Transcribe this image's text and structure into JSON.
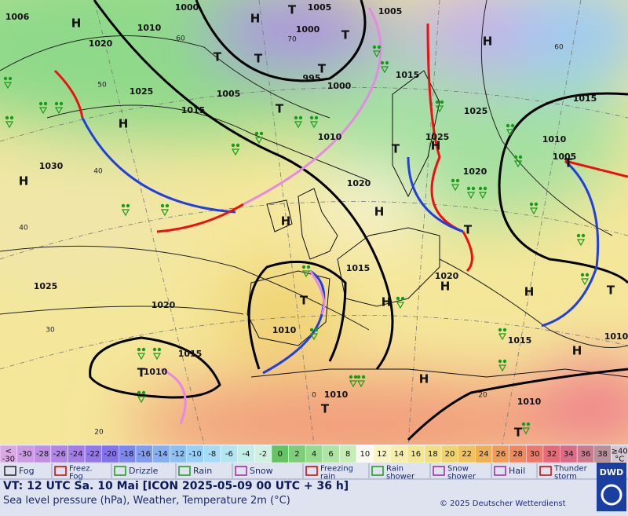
{
  "map": {
    "isobar_labels": [
      "1006",
      "1000",
      "1005",
      "1005",
      "1010",
      "1020",
      "1000",
      "995",
      "1000",
      "1015",
      "1025",
      "1005",
      "1015",
      "1015",
      "1025",
      "1010",
      "1025",
      "1010",
      "1005",
      "1030",
      "1020",
      "1020",
      "1015",
      "1020",
      "1025",
      "1020",
      "1010",
      "1015",
      "1010",
      "1015",
      "1010",
      "1010",
      "1010"
    ],
    "pressure_centers": [
      "H",
      "H",
      "H",
      "H",
      "H",
      "H",
      "H",
      "H",
      "H",
      "H",
      "H",
      "H",
      "H",
      "T",
      "T",
      "T",
      "T",
      "T",
      "T",
      "T",
      "T",
      "T",
      "T",
      "T",
      "T",
      "T",
      "T"
    ],
    "temperature_labels": [
      "60",
      "70",
      "50",
      "40",
      "40",
      "30",
      "20",
      "60",
      "20",
      "0"
    ]
  },
  "temperature_scale": {
    "labels": [
      "<\n-30",
      "-30",
      "-28",
      "-26",
      "-24",
      "-22",
      "-20",
      "-18",
      "-16",
      "-14",
      "-12",
      "-10",
      "-8",
      "-6",
      "-4",
      "-2",
      "0",
      "2",
      "4",
      "6",
      "8",
      "10",
      "12",
      "14",
      "16",
      "18",
      "20",
      "22",
      "24",
      "26",
      "28",
      "30",
      "32",
      "34",
      "36",
      "38",
      "≥40\n°C"
    ],
    "colors": [
      "#dba8e6",
      "#cc9ce6",
      "#c08fe6",
      "#b286e8",
      "#a37ee8",
      "#9378ec",
      "#8272ee",
      "#7b88f0",
      "#7f9cf2",
      "#86aff4",
      "#8dc1f6",
      "#98d0f8",
      "#a6dcf6",
      "#b4e6f2",
      "#c2eeea",
      "#cef2e0",
      "#64c464",
      "#7ccf78",
      "#95db8c",
      "#ade6a2",
      "#c4eeb6",
      "#fafaf0",
      "#f8f4c6",
      "#f6eeaa",
      "#f4e792",
      "#f2df7e",
      "#f0d36c",
      "#f0c35e",
      "#f0b052",
      "#f09c56",
      "#f08a5e",
      "#ee786a",
      "#e86a78",
      "#dc6c86",
      "#cc7a8e",
      "#b8909a",
      "#d6c8d0"
    ]
  },
  "legend": [
    "Fog",
    "Freez.\nFog",
    "Drizzle",
    "Rain",
    "Snow",
    "Freezing\nrain",
    "Rain\nshower",
    "Snow\nshower",
    "Hail",
    "Thunder\nstorm"
  ],
  "footer": {
    "valid_time": "VT: 12 UTC Sa.  10 Mai [ICON 2025-05-09  00 UTC + 36 h]",
    "description": "Sea level pressure (hPa), Weather, Temperature 2m (°C)",
    "copyright": "© 2025 Deutscher Wetterdienst",
    "logo": "DWD"
  }
}
